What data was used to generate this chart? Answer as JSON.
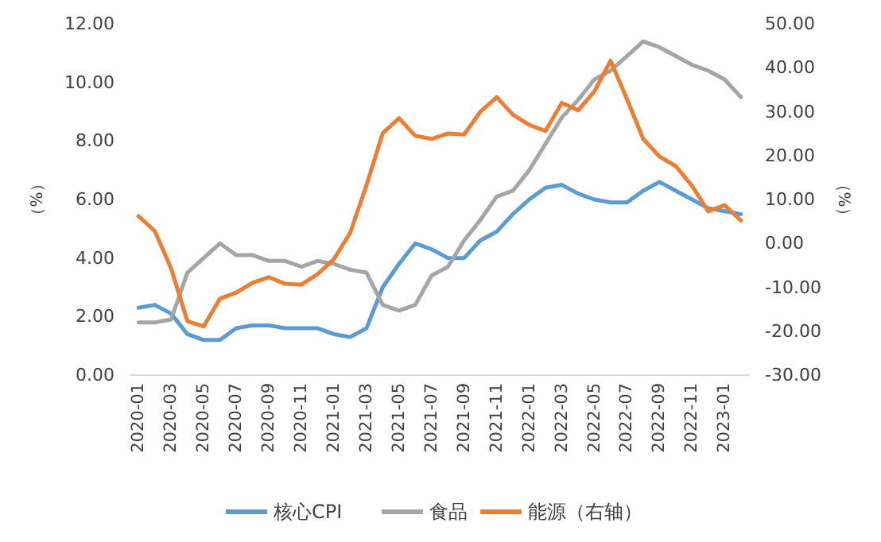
{
  "chart_data": {
    "type": "line",
    "ylabel": "（%）",
    "y2label": "（%）",
    "categories": [
      "2020-01",
      null,
      "2020-03",
      null,
      "2020-05",
      null,
      "2020-07",
      null,
      "2020-09",
      null,
      "2020-11",
      null,
      "2021-01",
      null,
      "2021-03",
      null,
      "2021-05",
      null,
      "2021-07",
      null,
      "2021-09",
      null,
      "2021-11",
      null,
      "2022-01",
      null,
      "2022-03",
      null,
      "2022-05",
      null,
      "2022-07",
      null,
      "2022-09",
      null,
      "2022-11",
      null,
      "2023-01",
      null
    ],
    "series": [
      {
        "name": "核心CPI",
        "color": "#5b9bd5",
        "values": [
          2.3,
          2.4,
          2.1,
          1.4,
          1.2,
          1.2,
          1.6,
          1.7,
          1.7,
          1.6,
          1.6,
          1.6,
          1.4,
          1.3,
          1.6,
          3.0,
          3.8,
          4.5,
          4.3,
          4.0,
          4.0,
          4.6,
          4.9,
          5.5,
          6.0,
          6.4,
          6.5,
          6.2,
          6.0,
          5.9,
          5.9,
          6.3,
          6.6,
          6.3,
          6.0,
          5.7,
          5.6,
          5.5
        ]
      },
      {
        "name": "食品",
        "color": "#a5a5a5",
        "values": [
          1.8,
          1.8,
          1.9,
          3.5,
          4.0,
          4.5,
          4.1,
          4.1,
          3.9,
          3.9,
          3.7,
          3.9,
          3.8,
          3.6,
          3.5,
          2.4,
          2.2,
          2.4,
          3.4,
          3.7,
          4.6,
          5.3,
          6.1,
          6.3,
          7.0,
          7.9,
          8.8,
          9.4,
          10.1,
          10.4,
          10.9,
          11.4,
          11.2,
          10.9,
          10.6,
          10.4,
          10.1,
          9.5
        ]
      },
      {
        "name": "能源（右轴）",
        "color": "#ed7d31",
        "axis": "y2",
        "values": [
          6.2,
          2.8,
          -5.7,
          -17.7,
          -18.9,
          -12.6,
          -11.2,
          -9.0,
          -7.7,
          -9.2,
          -9.4,
          -7.0,
          -3.6,
          2.4,
          13.2,
          25.1,
          28.5,
          24.5,
          23.8,
          25.0,
          24.8,
          30.0,
          33.3,
          29.3,
          27.0,
          25.6,
          32.0,
          30.3,
          34.6,
          41.6,
          32.9,
          23.8,
          19.8,
          17.6,
          13.1,
          7.3,
          8.7,
          5.2
        ]
      }
    ],
    "ylim": [
      0,
      12
    ],
    "yticks": [
      {
        "value": 0,
        "label": "0.00"
      },
      {
        "value": 2,
        "label": "2.00"
      },
      {
        "value": 4,
        "label": "4.00"
      },
      {
        "value": 6,
        "label": "6.00"
      },
      {
        "value": 8,
        "label": "8.00"
      },
      {
        "value": 10,
        "label": "10.00"
      },
      {
        "value": 12,
        "label": "12.00"
      }
    ],
    "y2lim": [
      -30,
      50
    ],
    "y2ticks": [
      {
        "value": -30,
        "label": "-30.00"
      },
      {
        "value": -20,
        "label": "-20.00"
      },
      {
        "value": -10,
        "label": "-10.00"
      },
      {
        "value": 0,
        "label": "0.00"
      },
      {
        "value": 10,
        "label": "10.00"
      },
      {
        "value": 20,
        "label": "20.00"
      },
      {
        "value": 30,
        "label": "30.00"
      },
      {
        "value": 40,
        "label": "40.00"
      },
      {
        "value": 50,
        "label": "50.00"
      }
    ],
    "grid": false,
    "legend": "bottom",
    "marker": "none",
    "line_style": "solid"
  }
}
